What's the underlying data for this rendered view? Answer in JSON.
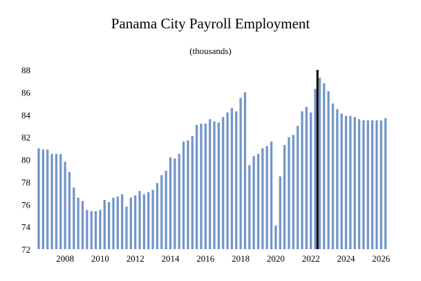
{
  "chart_data": {
    "type": "bar",
    "title": "Panama City Payroll Employment",
    "subtitle": "(thousands)",
    "xlabel": "",
    "ylabel": "",
    "ylim": [
      72,
      88
    ],
    "yticks": [
      "72",
      "74",
      "76",
      "78",
      "80",
      "82",
      "84",
      "86",
      "88"
    ],
    "xticks": [
      "2008",
      "2010",
      "2012",
      "2014",
      "2016",
      "2018",
      "2020",
      "2022",
      "2024",
      "2026"
    ],
    "xrange": [
      2006.5,
      2026.5
    ],
    "bar_color": "#7396c8",
    "forecast_marker_color": "#000000",
    "forecast_start": 2022.25,
    "grid": false,
    "series": [
      {
        "x": [
          2006.5,
          2006.75,
          2007.0,
          2007.25,
          2007.5,
          2007.75,
          2008.0,
          2008.25,
          2008.5,
          2008.75,
          2009.0,
          2009.25,
          2009.5,
          2009.75,
          2010.0,
          2010.25,
          2010.5,
          2010.75,
          2011.0,
          2011.25,
          2011.5,
          2011.75,
          2012.0,
          2012.25,
          2012.5,
          2012.75,
          2013.0,
          2013.25,
          2013.5,
          2013.75,
          2014.0,
          2014.25,
          2014.5,
          2014.75,
          2015.0,
          2015.25,
          2015.5,
          2015.75,
          2016.0,
          2016.25,
          2016.5,
          2016.75,
          2017.0,
          2017.25,
          2017.5,
          2017.75,
          2018.0,
          2018.25,
          2018.5,
          2018.75,
          2019.0,
          2019.25,
          2019.5,
          2019.75,
          2020.0,
          2020.25,
          2020.5,
          2020.75,
          2021.0,
          2021.25,
          2021.5,
          2021.75,
          2022.0,
          2022.25,
          2022.5,
          2022.75,
          2023.0,
          2023.25,
          2023.5,
          2023.75,
          2024.0,
          2024.25,
          2024.5,
          2024.75,
          2025.0,
          2025.25,
          2025.5,
          2025.75,
          2026.0,
          2026.25
        ],
        "values": [
          81.0,
          80.9,
          80.9,
          80.5,
          80.5,
          80.5,
          79.8,
          78.9,
          77.5,
          76.6,
          76.3,
          75.5,
          75.4,
          75.4,
          75.5,
          76.4,
          76.2,
          76.6,
          76.7,
          76.9,
          75.8,
          76.6,
          76.8,
          77.2,
          76.9,
          77.1,
          77.3,
          77.9,
          78.6,
          79.0,
          80.2,
          80.1,
          80.5,
          81.6,
          81.7,
          82.1,
          83.1,
          83.2,
          83.2,
          83.6,
          83.4,
          83.3,
          83.8,
          84.2,
          84.6,
          84.3,
          85.5,
          86.0,
          79.5,
          80.3,
          80.5,
          81.0,
          81.2,
          81.6,
          74.1,
          78.5,
          81.3,
          82.0,
          82.2,
          83.0,
          84.3,
          84.7,
          84.2,
          86.3,
          87.3,
          86.8,
          86.1,
          85.0,
          84.5,
          84.1,
          83.9,
          83.9,
          83.8,
          83.6,
          83.5,
          83.5,
          83.5,
          83.5,
          83.5,
          83.7
        ]
      }
    ]
  }
}
